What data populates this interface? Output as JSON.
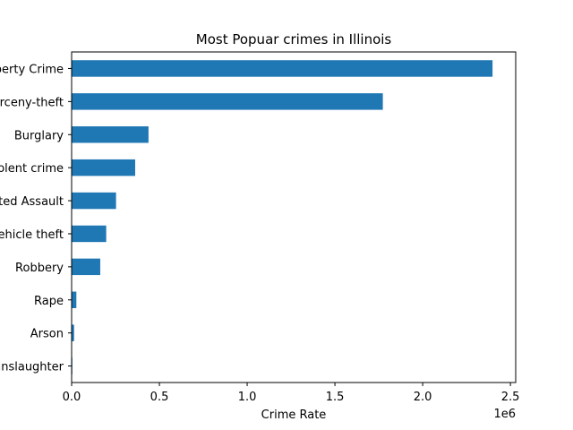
{
  "chart_data": {
    "type": "bar",
    "orientation": "horizontal",
    "title": "Most Popuar crimes in Illinois",
    "xlabel": "Crime Rate",
    "ylabel": "",
    "offset_text": "1e6",
    "categories": [
      "Property Crime",
      "Larceny-theft",
      "Burglary",
      "Violent crime",
      "Aggravated Assault",
      "Motor vehicle theft",
      "Robbery",
      "Rape",
      "Arson",
      "Manslaughter"
    ],
    "values": [
      2398000,
      1773000,
      438000,
      362000,
      253000,
      197000,
      163000,
      27000,
      14000,
      1000
    ],
    "xlim": [
      0,
      2530000
    ],
    "xticks": [
      0,
      500000,
      1000000,
      1500000,
      2000000,
      2500000
    ],
    "xtick_labels": [
      "0.0",
      "0.5",
      "1.0",
      "1.5",
      "2.0",
      "2.5"
    ],
    "bar_color": "#1f77b4",
    "grid": false,
    "legend": "none"
  }
}
